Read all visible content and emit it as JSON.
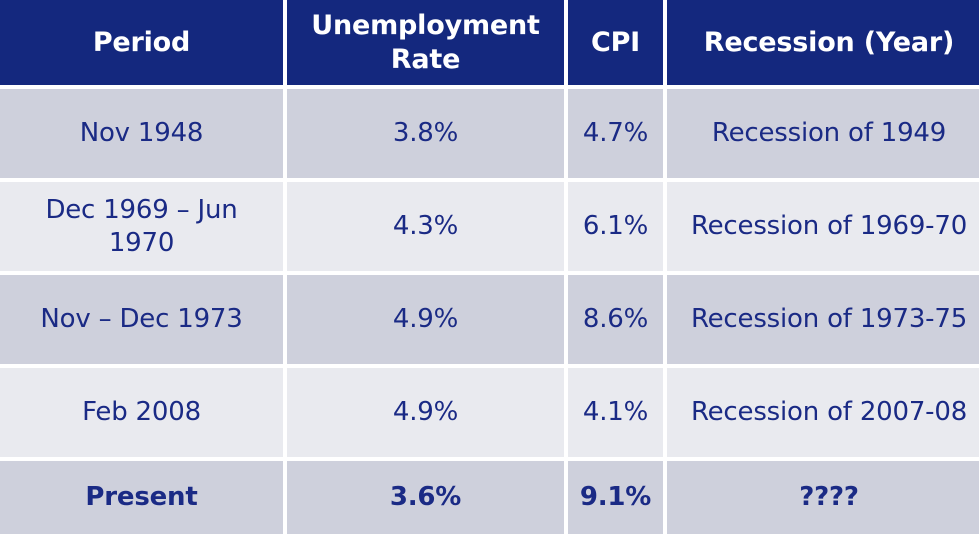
{
  "table": {
    "headers": [
      "Period",
      "Unemployment Rate",
      "CPI",
      "Recession (Year)"
    ],
    "rows": [
      {
        "period": "Nov 1948",
        "unemployment": "3.8%",
        "cpi": "4.7%",
        "recession": "Recession of 1949"
      },
      {
        "period": "Dec 1969 – Jun 1970",
        "unemployment": "4.3%",
        "cpi": "6.1%",
        "recession": "Recession of 1969-70"
      },
      {
        "period": "Nov – Dec 1973",
        "unemployment": "4.9%",
        "cpi": "8.6%",
        "recession": "Recession of 1973-75"
      },
      {
        "period": "Feb 2008",
        "unemployment": "4.9%",
        "cpi": "4.1%",
        "recession": "Recession of 2007-08"
      },
      {
        "period": "Present",
        "unemployment": "3.6%",
        "cpi": "9.1%",
        "recession": "????"
      }
    ]
  },
  "colors": {
    "header_bg": "#14287e",
    "header_text": "#ffffff",
    "body_text": "#1a2a85",
    "row_dark": "#ced0dc",
    "row_light": "#e9eaef"
  }
}
